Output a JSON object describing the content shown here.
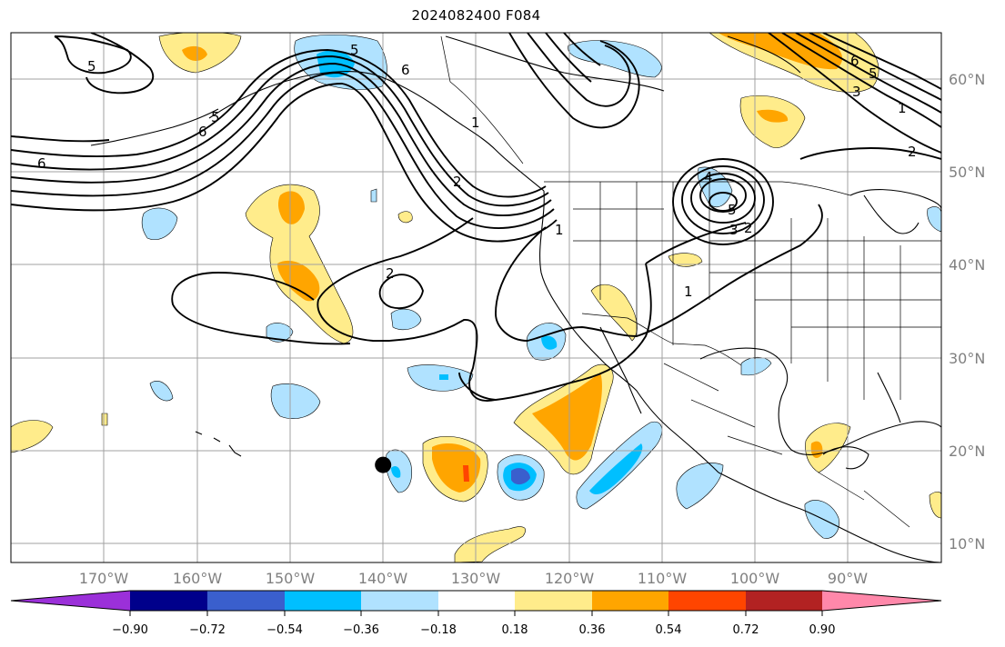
{
  "title": "2024082400 F084",
  "map": {
    "lon_range": [
      -180,
      -80
    ],
    "lat_range": [
      8,
      65
    ],
    "gridlines": true,
    "lat_ticks": [
      "10°N",
      "20°N",
      "30°N",
      "40°N",
      "50°N",
      "60°N"
    ],
    "lon_ticks": [
      "170°W",
      "160°W",
      "150°W",
      "140°W",
      "130°W",
      "120°W",
      "110°W",
      "100°W",
      "90°W"
    ],
    "marker": {
      "name": "storm-center",
      "lon": -140,
      "lat": 18.5
    }
  },
  "contour_labels": [
    "5",
    "6",
    "6",
    "5",
    "1",
    "6",
    "5",
    "2",
    "1",
    "4",
    "5",
    "3",
    "2",
    "2",
    "1",
    "6",
    "5",
    "3",
    "2",
    "1"
  ],
  "colorbar": {
    "ticks": [
      "−0.90",
      "−0.72",
      "−0.54",
      "−0.36",
      "−0.18",
      "0.18",
      "0.36",
      "0.54",
      "0.72",
      "0.90"
    ],
    "colors": [
      "#9b30d9",
      "#00008b",
      "#3a5fcd",
      "#00bfff",
      "#b0e2ff",
      "#ffffff",
      "#ffec8b",
      "#ffa500",
      "#ff4500",
      "#b22222",
      "#ff88aa"
    ]
  }
}
